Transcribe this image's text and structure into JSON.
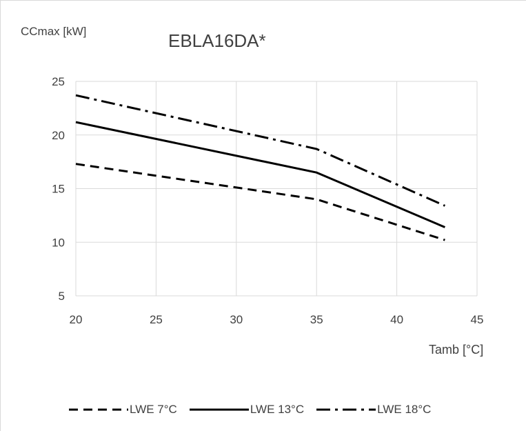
{
  "chart_data": {
    "type": "line",
    "title": "EBLA16DA*",
    "ylabel": "CCmax [kW]",
    "xlabel": "Tamb [°C]",
    "xlim": [
      20,
      45
    ],
    "ylim": [
      5,
      25
    ],
    "x_ticks": [
      20,
      25,
      30,
      35,
      40,
      45
    ],
    "y_ticks": [
      5,
      10,
      15,
      20,
      25
    ],
    "grid": true,
    "legend_position": "bottom",
    "series": [
      {
        "name": "LWE 7°C",
        "style": "dashed",
        "color": "#000000",
        "points": [
          [
            20,
            17.3
          ],
          [
            35,
            14.0
          ],
          [
            43,
            10.2
          ]
        ]
      },
      {
        "name": "LWE 13°C",
        "style": "solid",
        "color": "#000000",
        "points": [
          [
            20,
            21.2
          ],
          [
            35,
            16.5
          ],
          [
            43,
            11.4
          ]
        ]
      },
      {
        "name": "LWE 18°C",
        "style": "dash-dot",
        "color": "#000000",
        "points": [
          [
            20,
            23.7
          ],
          [
            35,
            18.7
          ],
          [
            43,
            13.4
          ]
        ]
      }
    ]
  }
}
